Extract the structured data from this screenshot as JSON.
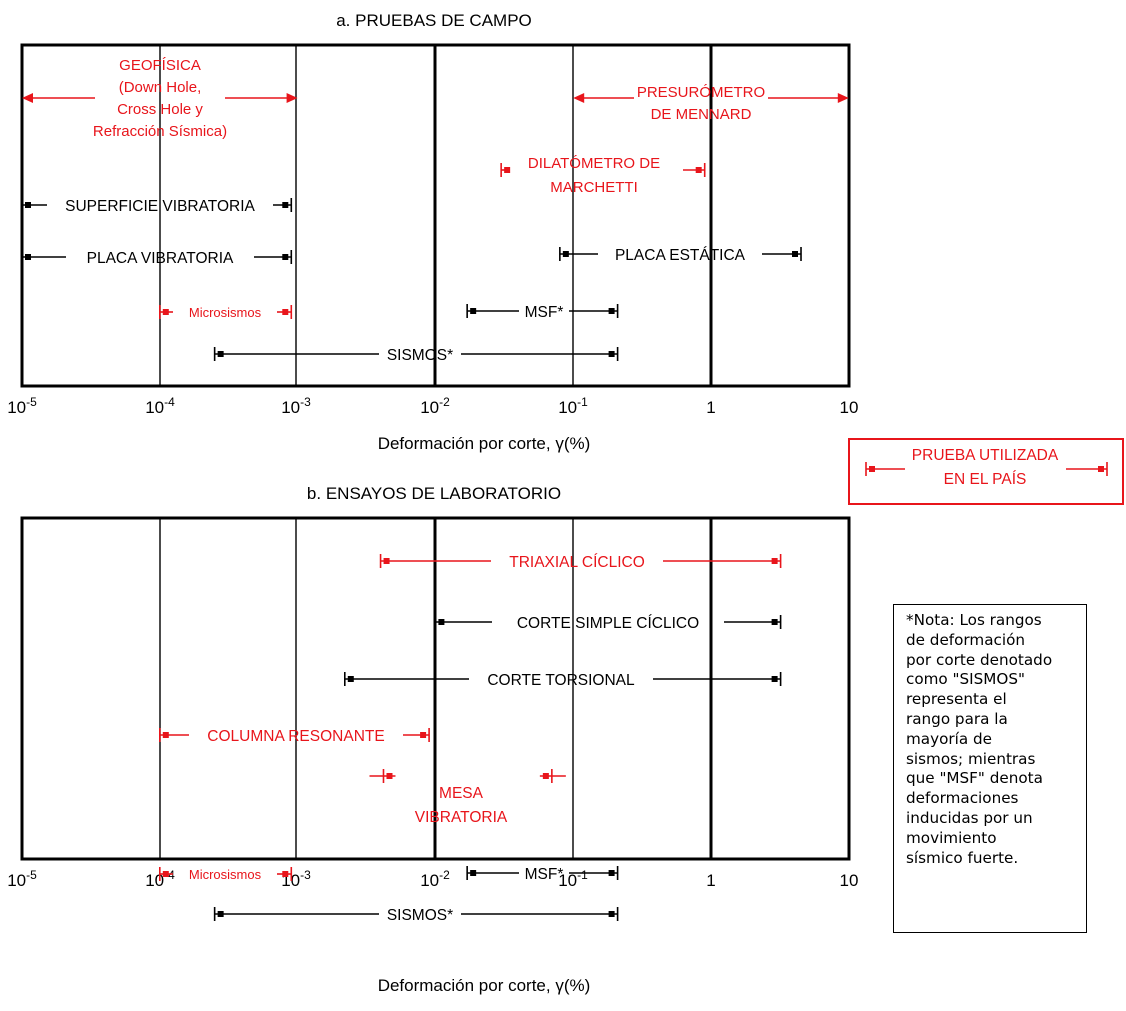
{
  "panels": [
    {
      "id": "campo",
      "title": "a. PRUEBAS DE CAMPO",
      "xlabel": "Deformación por corte, γ(%)",
      "ticks": [
        {
          "exp": "-5",
          "label": "10"
        },
        {
          "exp": "-4",
          "label": "10"
        },
        {
          "exp": "-3",
          "label": "10"
        },
        {
          "exp": "-2",
          "label": "10"
        },
        {
          "exp": "-1",
          "label": "10"
        },
        {
          "exp": "",
          "label": "1"
        },
        {
          "exp": "",
          "label": "10"
        }
      ],
      "ranges": [
        {
          "lines": [
            "GEOFÍSICA",
            "(Down Hole,",
            "Cross Hole y",
            "Refracción Sísmica)"
          ],
          "from": 1e-05,
          "to": 0.001,
          "color": "#e8151b",
          "style": "arrow"
        },
        {
          "lines": [
            "PRESURÓMETRO",
            "DE MENNARD"
          ],
          "from": 0.1,
          "to": 10,
          "color": "#e8151b",
          "style": "arrow"
        },
        {
          "lines": [
            "DILATÓMETRO DE",
            "MARCHETTI"
          ],
          "from": 0.03,
          "to": 0.9,
          "color": "#e8151b",
          "style": "bar"
        },
        {
          "lines": [
            "SUPERFICIE VIBRATORIA"
          ],
          "from": 1e-05,
          "to": 0.0009,
          "color": "#000000",
          "style": "bar"
        },
        {
          "lines": [
            "PLACA VIBRATORIA"
          ],
          "from": 1e-05,
          "to": 0.0009,
          "color": "#000000",
          "style": "bar"
        },
        {
          "lines": [
            "PLACA ESTÁTICA"
          ],
          "from": 0.08,
          "to": 4.5,
          "color": "#000000",
          "style": "bar"
        },
        {
          "lines": [
            "Microsismos"
          ],
          "from": 0.0001,
          "to": 0.0009,
          "color": "#e8151b",
          "style": "bar"
        },
        {
          "lines": [
            "MSF*"
          ],
          "from": 0.017,
          "to": 0.21,
          "color": "#000000",
          "style": "bar"
        },
        {
          "lines": [
            "SISMOS*"
          ],
          "from": 0.00025,
          "to": 0.21,
          "color": "#000000",
          "style": "bar"
        }
      ]
    },
    {
      "id": "laboratorio",
      "title": "b. ENSAYOS DE LABORATORIO",
      "xlabel": "Deformación por corte, γ(%)",
      "ticks": [
        {
          "exp": "-5",
          "label": "10"
        },
        {
          "exp": "-4",
          "label": "10"
        },
        {
          "exp": "-3",
          "label": "10"
        },
        {
          "exp": "-2",
          "label": "10"
        },
        {
          "exp": "-1",
          "label": "10"
        },
        {
          "exp": "",
          "label": "1"
        },
        {
          "exp": "",
          "label": "10"
        }
      ],
      "ranges": [
        {
          "lines": [
            "TRIAXIAL CÍCLICO"
          ],
          "from": 0.004,
          "to": 3.2,
          "color": "#e8151b",
          "style": "bar"
        },
        {
          "lines": [
            "CORTE SIMPLE CÍCLICO"
          ],
          "from": 0.01,
          "to": 3.2,
          "color": "#000000",
          "style": "bar"
        },
        {
          "lines": [
            "CORTE TORSIONAL"
          ],
          "from": 0.0022,
          "to": 3.2,
          "color": "#000000",
          "style": "bar"
        },
        {
          "lines": [
            "COLUMNA RESONANTE"
          ],
          "from": 0.0001,
          "to": 0.009,
          "color": "#e8151b",
          "style": "bar"
        },
        {
          "lines": [
            "MESA",
            "VIBRATORIA"
          ],
          "from": 0.0042,
          "to": 0.07,
          "color": "#e8151b",
          "style": "mesa"
        },
        {
          "lines": [
            "Microsismos"
          ],
          "from": 0.0001,
          "to": 0.0009,
          "color": "#e8151b",
          "style": "bar"
        },
        {
          "lines": [
            "MSF*"
          ],
          "from": 0.017,
          "to": 0.21,
          "color": "#000000",
          "style": "bar"
        },
        {
          "lines": [
            "SISMOS*"
          ],
          "from": 0.00025,
          "to": 0.21,
          "color": "#000000",
          "style": "bar"
        }
      ]
    }
  ],
  "legend": {
    "lines": [
      "PRUEBA UTILIZADA",
      "EN EL PAÍS"
    ],
    "color": "#e8151b"
  },
  "note": {
    "lines": [
      "*Nota: Los rangos",
      "de deformación",
      "por corte denotado",
      "como \"SISMOS\"",
      "representa el",
      "rango para la",
      "mayoría de",
      "sismos; mientras",
      "que \"MSF\" denota",
      "deformaciones",
      "inducidas por un",
      "movimiento",
      "sísmico fuerte."
    ]
  }
}
